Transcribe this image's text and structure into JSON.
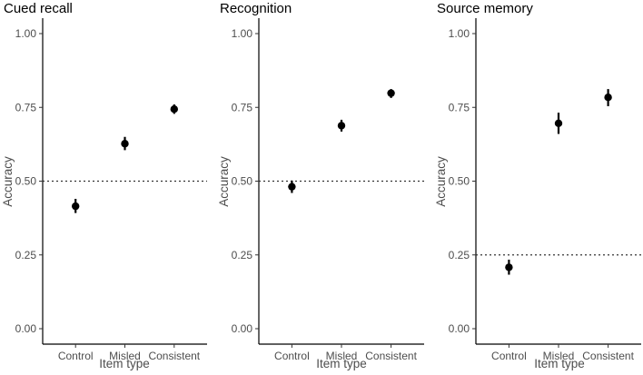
{
  "chart_data": [
    {
      "type": "scatter",
      "title": "Cued recall",
      "xlabel": "Item type",
      "ylabel": "Accuracy",
      "categories": [
        "Control",
        "Misled",
        "Consistent"
      ],
      "values": [
        0.415,
        0.627,
        0.744
      ],
      "ci_low": [
        0.392,
        0.605,
        0.728
      ],
      "ci_high": [
        0.44,
        0.65,
        0.76
      ],
      "ylim": [
        0,
        1
      ],
      "yticks": [
        "0.00",
        "0.25",
        "0.50",
        "0.75",
        "1.00"
      ],
      "reference_line": 0.5
    },
    {
      "type": "scatter",
      "title": "Recognition",
      "xlabel": "Item type",
      "ylabel": "Accuracy",
      "categories": [
        "Control",
        "Misled",
        "Consistent"
      ],
      "values": [
        0.481,
        0.688,
        0.798
      ],
      "ci_low": [
        0.46,
        0.668,
        0.782
      ],
      "ci_high": [
        0.502,
        0.708,
        0.812
      ],
      "ylim": [
        0,
        1
      ],
      "yticks": [
        "0.00",
        "0.25",
        "0.50",
        "0.75",
        "1.00"
      ],
      "reference_line": 0.5
    },
    {
      "type": "scatter",
      "title": "Source memory",
      "xlabel": "Item type",
      "ylabel": "Accuracy",
      "categories": [
        "Control",
        "Misled",
        "Consistent"
      ],
      "values": [
        0.208,
        0.696,
        0.784
      ],
      "ci_low": [
        0.183,
        0.66,
        0.754
      ],
      "ci_high": [
        0.234,
        0.732,
        0.812
      ],
      "ylim": [
        0,
        1
      ],
      "yticks": [
        "0.00",
        "0.25",
        "0.50",
        "0.75",
        "1.00"
      ],
      "reference_line": 0.25
    }
  ]
}
